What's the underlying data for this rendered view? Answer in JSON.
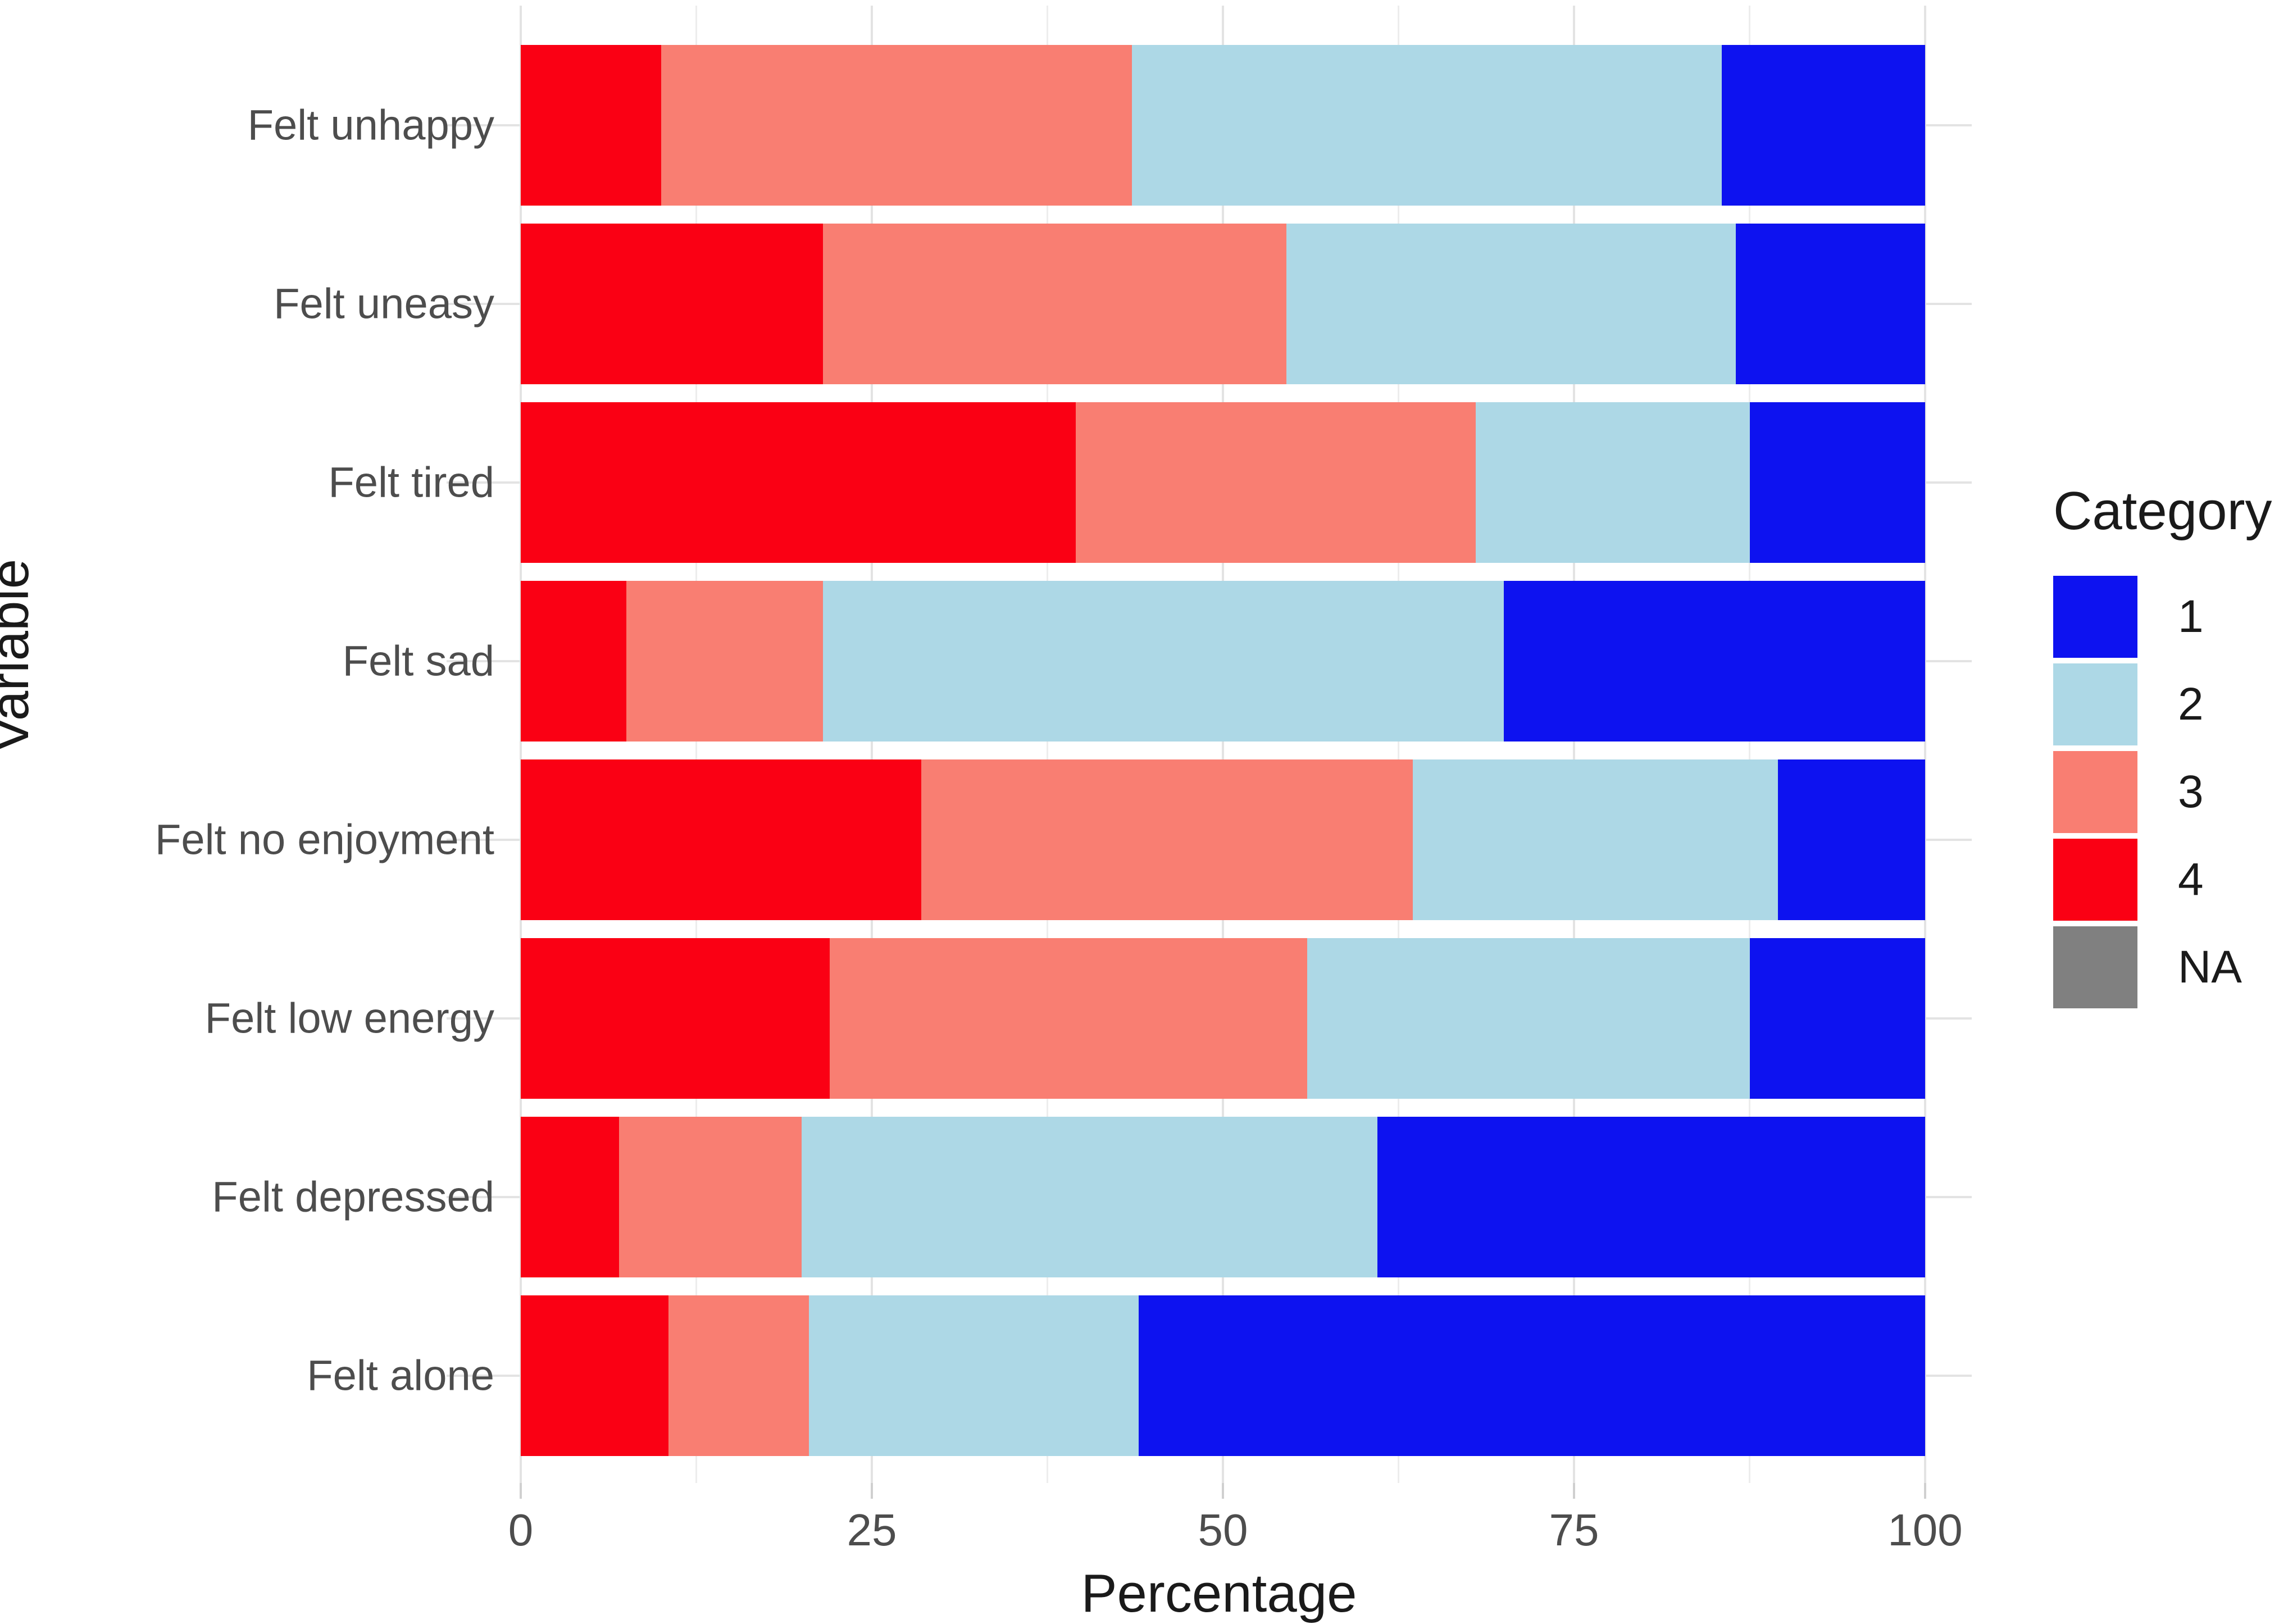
{
  "chart_data": {
    "type": "bar",
    "orientation": "horizontal",
    "stacked": true,
    "xlabel": "Percentage",
    "ylabel": "Variable",
    "xlim": [
      0,
      100
    ],
    "x_ticks": [
      0,
      25,
      50,
      75,
      100
    ],
    "x_minor_gridlines": [
      12.5,
      37.5,
      62.5,
      87.5
    ],
    "grid": "on",
    "categories": [
      "Felt unhappy",
      "Felt uneasy",
      "Felt tired",
      "Felt sad",
      "Felt no enjoyment",
      "Felt low energy",
      "Felt depressed",
      "Felt alone"
    ],
    "stack_order_left_to_right": [
      "4",
      "3",
      "2",
      "1"
    ],
    "series": [
      {
        "name": "4",
        "color": "#FA0014",
        "values": [
          10,
          21.5,
          39.5,
          7.5,
          28.5,
          22,
          7,
          10.5
        ]
      },
      {
        "name": "3",
        "color": "#F97E72",
        "values": [
          33.5,
          33,
          28.5,
          14,
          35,
          34,
          13,
          10
        ]
      },
      {
        "name": "2",
        "color": "#ADD8E6",
        "values": [
          42,
          32,
          19.5,
          48.5,
          26,
          31.5,
          41,
          23.5
        ]
      },
      {
        "name": "1",
        "color": "#0D12F0",
        "values": [
          14.5,
          13.5,
          12.5,
          30,
          10.5,
          12.5,
          39,
          56
        ]
      }
    ],
    "legend": {
      "title": "Category",
      "position": "right",
      "entries": [
        {
          "label": "1",
          "color": "#0D12F0"
        },
        {
          "label": "2",
          "color": "#ADD8E6"
        },
        {
          "label": "3",
          "color": "#F97E72"
        },
        {
          "label": "4",
          "color": "#FA0014"
        },
        {
          "label": "NA",
          "color": "#808080"
        }
      ]
    },
    "colors": {
      "gridline_major": "#E3E3E3",
      "gridline_minor": "#EDEDED",
      "axis_text": "#4D4D4D",
      "axis_title": "#1A1A1A",
      "background": "#FFFFFF"
    }
  }
}
